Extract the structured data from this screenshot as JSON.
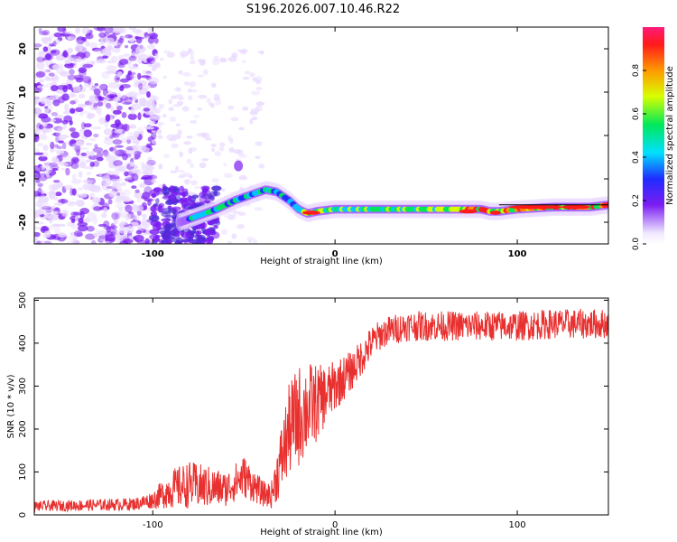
{
  "title": "S196.2026.007.10.46.R22",
  "colors": {
    "snr_line": "#e8302f",
    "spectro_low": "#e9d9ff",
    "spectro_mid": "#7b1df2",
    "ridge_line": "#000000",
    "axis": "#000000",
    "background": "#ffffff"
  },
  "chart_data": [
    {
      "type": "heatmap",
      "name": "spectrogram",
      "xlabel": "Height of straight line (km)",
      "ylabel": "Frequency (Hz)",
      "xlim": [
        -165,
        150
      ],
      "ylim": [
        -25,
        25
      ],
      "x_ticks": [
        -100,
        0,
        100
      ],
      "x_tick_labels": [
        "-100",
        "0",
        "100"
      ],
      "y_ticks": [
        -20,
        -10,
        0,
        10,
        20
      ],
      "y_tick_labels": [
        "-20",
        "-10",
        "0",
        "10",
        "20"
      ],
      "colorbar": {
        "label": "Normalized spectral amplitude",
        "range": [
          0,
          1
        ],
        "ticks": [
          0,
          0.2,
          0.4,
          0.6,
          0.8
        ],
        "tick_labels": [
          "0.0",
          "0.2",
          "0.4",
          "0.6",
          "0.8"
        ]
      },
      "ridge": {
        "description": "dominant frequency track",
        "x": [
          -85,
          -75,
          -65,
          -55,
          -45,
          -38,
          -32,
          -25,
          -20,
          -15,
          -10,
          0,
          10,
          20,
          40,
          60,
          80,
          85,
          90,
          100,
          120,
          140,
          150
        ],
        "y": [
          -20,
          -18.5,
          -17,
          -15,
          -13.5,
          -12.5,
          -13,
          -15,
          -17,
          -18,
          -17.5,
          -17,
          -17,
          -17,
          -17,
          -17,
          -17,
          -17.5,
          -17.5,
          -17,
          -16.5,
          -16.5,
          -16
        ]
      },
      "line_segment": {
        "x": [
          90,
          150
        ],
        "y": [
          -16,
          -16
        ]
      }
    },
    {
      "type": "line",
      "name": "snr",
      "xlabel": "Height of straight line (km)",
      "ylabel": "SNR (10 * v/v)",
      "xlim": [
        -165,
        150
      ],
      "ylim": [
        0,
        505
      ],
      "x_ticks": [
        -100,
        0,
        100
      ],
      "x_tick_labels": [
        "-100",
        "0",
        "100"
      ],
      "y_ticks": [
        0,
        100,
        200,
        300,
        400,
        500
      ],
      "y_tick_labels": [
        "0",
        "100",
        "200",
        "300",
        "400",
        "500"
      ],
      "series": [
        {
          "name": "SNR",
          "envelope_x": [
            -165,
            -110,
            -100,
            -90,
            -80,
            -70,
            -60,
            -50,
            -40,
            -35,
            -30,
            -25,
            -20,
            -15,
            -10,
            -5,
            0,
            10,
            20,
            25,
            30,
            40,
            60,
            80,
            100,
            120,
            140,
            150
          ],
          "envelope_y": [
            20,
            25,
            35,
            60,
            70,
            65,
            60,
            90,
            50,
            45,
            120,
            200,
            230,
            250,
            260,
            280,
            300,
            340,
            400,
            420,
            430,
            440,
            440,
            440,
            440,
            445,
            445,
            445
          ],
          "amplitude": [
            12,
            15,
            20,
            45,
            55,
            50,
            40,
            50,
            30,
            30,
            80,
            110,
            120,
            110,
            90,
            70,
            60,
            45,
            40,
            35,
            35,
            35,
            35,
            35,
            35,
            35,
            35,
            35
          ]
        }
      ]
    }
  ]
}
